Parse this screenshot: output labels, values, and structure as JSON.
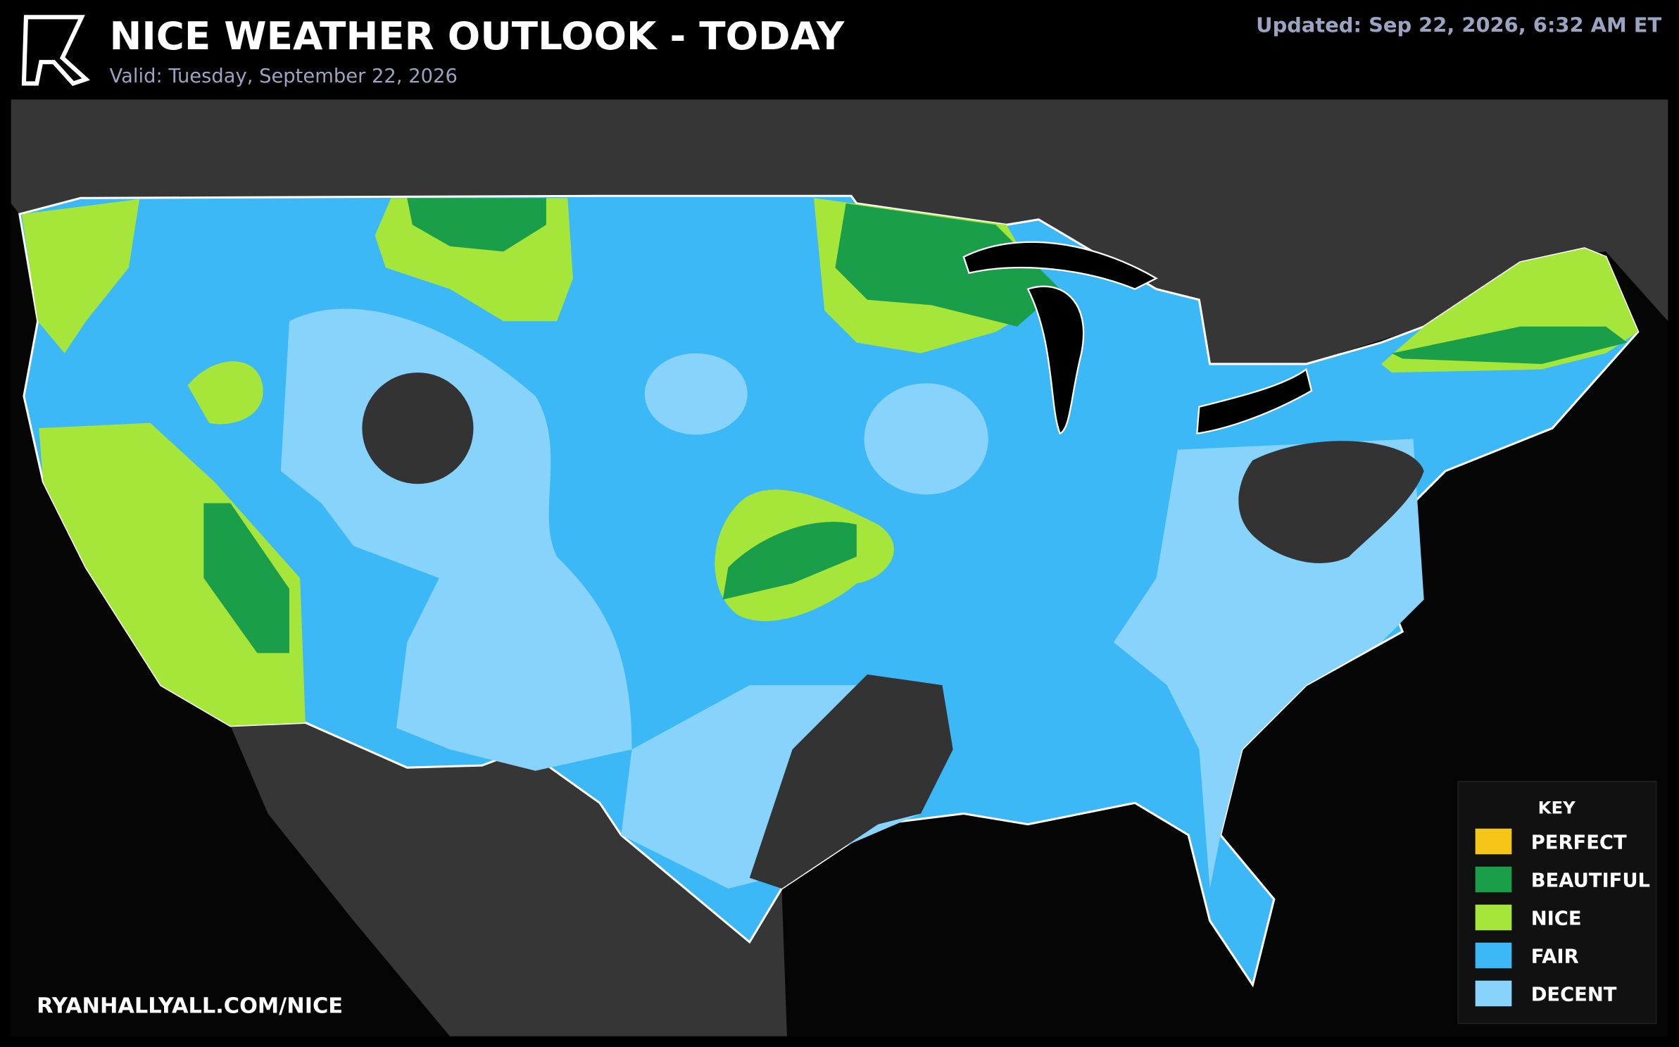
{
  "header": {
    "title": "NICE WEATHER OUTLOOK - TODAY",
    "subtitle": "Valid: Tuesday, September 22, 2026",
    "updated": "Updated: Sep 22, 2026, 6:32 AM ET"
  },
  "legend": {
    "title": "KEY",
    "items": [
      {
        "label": "PERFECT",
        "color": "#f5c518"
      },
      {
        "label": "BEAUTIFUL",
        "color": "#1a9e4a"
      },
      {
        "label": "NICE",
        "color": "#a6e63a"
      },
      {
        "label": "FAIR",
        "color": "#3bb8f5"
      },
      {
        "label": "DECENT",
        "color": "#87d3fb"
      }
    ]
  },
  "footer": {
    "url": "RYANHALLYALL.COM/NICE"
  }
}
